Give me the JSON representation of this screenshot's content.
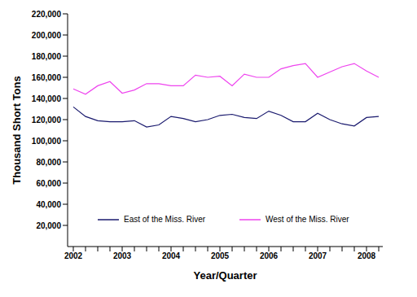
{
  "chart_data": {
    "type": "line",
    "x_label": "Year/Quarter",
    "y_label": "Thousand Short Tons",
    "categories": [
      "2002",
      null,
      null,
      null,
      "2003",
      null,
      null,
      null,
      "2004",
      null,
      null,
      null,
      "2005",
      null,
      null,
      null,
      "2006",
      null,
      null,
      null,
      "2007",
      null,
      null,
      null,
      "2008",
      null
    ],
    "series": [
      {
        "name": "East of the Miss. River",
        "color": "#1a1a6e",
        "values": [
          132000,
          123000,
          119000,
          118000,
          118000,
          119000,
          113000,
          115000,
          123000,
          121000,
          118000,
          120000,
          124000,
          125000,
          122000,
          121000,
          128000,
          124000,
          118000,
          118000,
          126000,
          120000,
          116000,
          114000,
          122000,
          123000
        ]
      },
      {
        "name": "West of the Miss. River",
        "color": "#ee44ee",
        "values": [
          149000,
          144000,
          152000,
          156000,
          145000,
          148000,
          154000,
          154000,
          152000,
          152000,
          162000,
          160000,
          161000,
          152000,
          163000,
          160000,
          160000,
          168000,
          171000,
          173000,
          160000,
          165000,
          170000,
          173000,
          166000,
          160000
        ]
      }
    ],
    "ylim": [
      0,
      220000
    ],
    "yticks": [
      {
        "value": 20000,
        "label": "20,000"
      },
      {
        "value": 40000,
        "label": "40,000"
      },
      {
        "value": 60000,
        "label": "60,000"
      },
      {
        "value": 80000,
        "label": "80,000"
      },
      {
        "value": 100000,
        "label": "100,000"
      },
      {
        "value": 120000,
        "label": "120,000"
      },
      {
        "value": 140000,
        "label": "140,000"
      },
      {
        "value": 160000,
        "label": "160,000"
      },
      {
        "value": 180000,
        "label": "180,000"
      },
      {
        "value": 200000,
        "label": "200,000"
      },
      {
        "value": 220000,
        "label": "220,000"
      }
    ],
    "grid": false,
    "legend": "bottom"
  }
}
